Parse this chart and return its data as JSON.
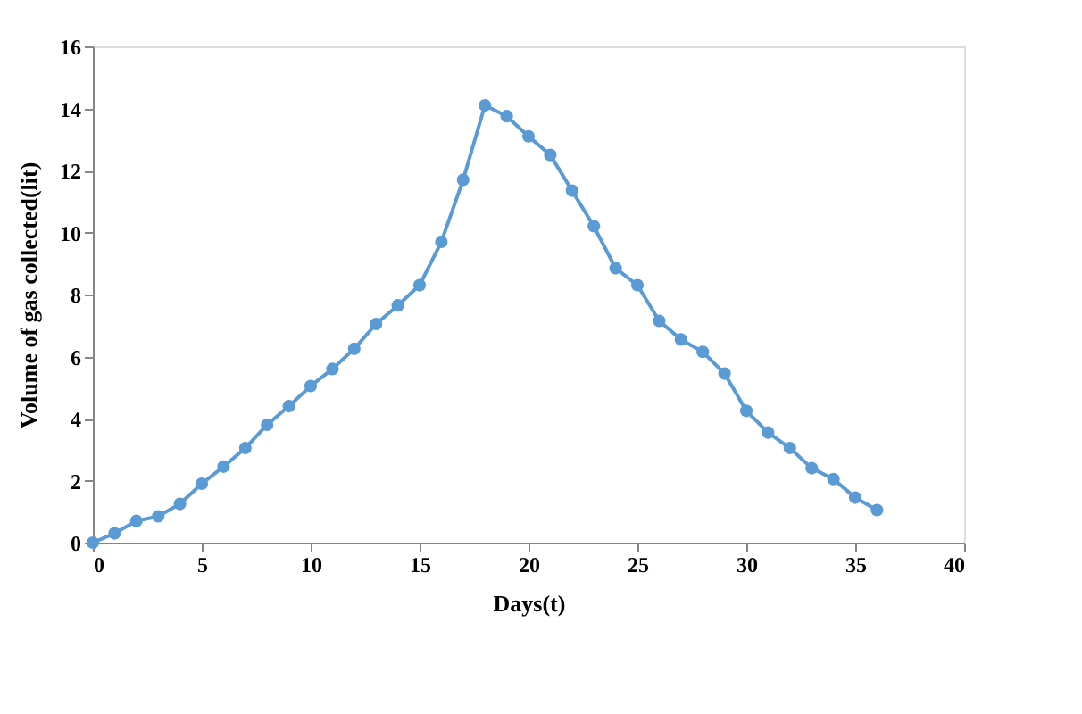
{
  "chart_data": {
    "type": "line",
    "xlabel": "Days(t)",
    "ylabel": "Volume of gas collected(lit)",
    "x": [
      0,
      1,
      2,
      3,
      4,
      5,
      6,
      7,
      8,
      9,
      10,
      11,
      12,
      13,
      14,
      15,
      16,
      17,
      18,
      19,
      20,
      21,
      22,
      23,
      24,
      25,
      26,
      27,
      28,
      29,
      30,
      31,
      32,
      33,
      34,
      35,
      36
    ],
    "series": [
      {
        "color": "#5b9bd5",
        "values": [
          0,
          0.3,
          0.7,
          0.85,
          1.25,
          1.9,
          2.45,
          3.05,
          3.8,
          4.4,
          5.05,
          5.6,
          6.25,
          7.05,
          7.65,
          8.3,
          9.7,
          11.7,
          14.1,
          13.75,
          13.1,
          12.5,
          11.35,
          10.2,
          8.85,
          8.3,
          7.15,
          6.55,
          6.15,
          5.45,
          4.25,
          3.55,
          3.05,
          2.4,
          2.05,
          1.45,
          1.05
        ]
      }
    ],
    "xlim": [
      0,
      40
    ],
    "xticks": [
      0,
      5,
      10,
      15,
      20,
      25,
      30,
      35,
      40
    ],
    "ylim": [
      0,
      16
    ],
    "yticks": [
      0,
      2,
      4,
      6,
      8,
      10,
      12,
      14,
      16
    ],
    "grid": false,
    "marker": "circle",
    "line_style": "solid"
  }
}
